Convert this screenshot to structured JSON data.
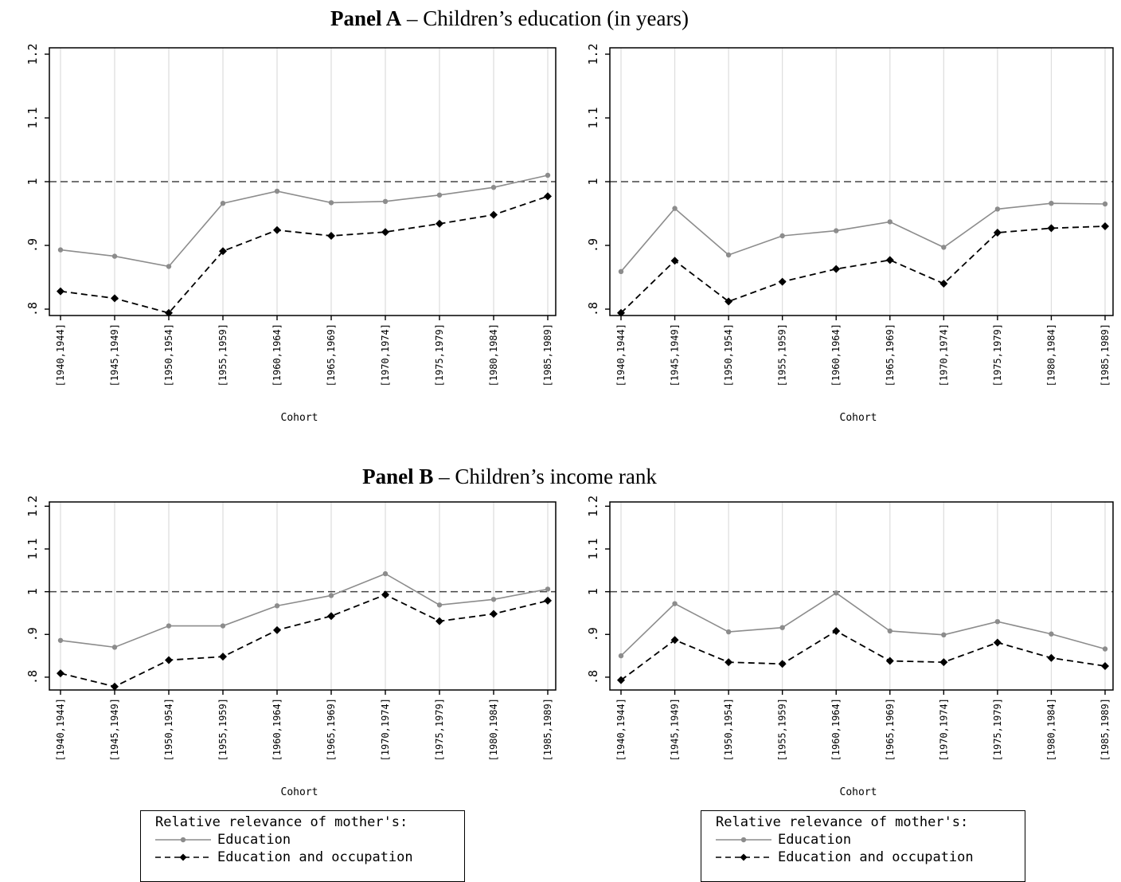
{
  "panels": {
    "a": {
      "bold": "Panel A",
      "rest": " – Children’s education (in years)"
    },
    "b": {
      "bold": "Panel B",
      "rest": " – Children’s income rank"
    }
  },
  "style": {
    "education_color": "#8c8c8c",
    "educ_occ_color": "#000000",
    "reference_color": "#444444",
    "grid_color": "#dddddd"
  },
  "legend": {
    "title": "Relative relevance of mother's:",
    "items": [
      "Education",
      "Education and occupation"
    ]
  },
  "chart_data": [
    {
      "type": "line",
      "panel": "Panel A",
      "xlabel": "Cohort",
      "categories": [
        "[1940,1944]",
        "[1945,1949]",
        "[1950,1954]",
        "[1955,1959]",
        "[1960,1964]",
        "[1965,1969]",
        "[1970,1974]",
        "[1975,1979]",
        "[1980,1984]",
        "[1985,1989]"
      ],
      "yticks": [
        ".8",
        ".9",
        "1",
        "1.1",
        "1.2"
      ],
      "ylim": [
        0.79,
        1.21
      ],
      "reference_line": 1,
      "grid": true,
      "series": [
        {
          "name": "Education",
          "values": [
            0.893,
            0.883,
            0.867,
            0.966,
            0.985,
            0.967,
            0.969,
            0.979,
            0.991,
            1.01
          ]
        },
        {
          "name": "Education and occupation",
          "values": [
            0.828,
            0.817,
            0.794,
            0.891,
            0.924,
            0.915,
            0.921,
            0.934,
            0.948,
            0.977
          ]
        }
      ]
    },
    {
      "type": "line",
      "panel": "Panel A",
      "xlabel": "Cohort",
      "categories": [
        "[1940,1944]",
        "[1945,1949]",
        "[1950,1954]",
        "[1955,1959]",
        "[1960,1964]",
        "[1965,1969]",
        "[1970,1974]",
        "[1975,1979]",
        "[1980,1984]",
        "[1985,1989]"
      ],
      "yticks": [
        ".8",
        ".9",
        "1",
        "1.1",
        "1.2"
      ],
      "ylim": [
        0.79,
        1.21
      ],
      "reference_line": 1,
      "grid": true,
      "series": [
        {
          "name": "Education",
          "values": [
            0.859,
            0.958,
            0.885,
            0.915,
            0.923,
            0.937,
            0.897,
            0.957,
            0.966,
            0.965
          ]
        },
        {
          "name": "Education and occupation",
          "values": [
            0.794,
            0.876,
            0.812,
            0.843,
            0.863,
            0.877,
            0.84,
            0.92,
            0.927,
            0.93
          ]
        }
      ]
    },
    {
      "type": "line",
      "panel": "Panel B",
      "xlabel": "Cohort",
      "categories": [
        "[1940,1944]",
        "[1945,1949]",
        "[1950,1954]",
        "[1955,1959]",
        "[1960,1964]",
        "[1965,1969]",
        "[1970,1974]",
        "[1975,1979]",
        "[1980,1984]",
        "[1985,1989]"
      ],
      "yticks": [
        ".8",
        ".9",
        "1",
        "1.1",
        "1.2"
      ],
      "ylim": [
        0.77,
        1.21
      ],
      "reference_line": 1,
      "grid": true,
      "series": [
        {
          "name": "Education",
          "values": [
            0.886,
            0.87,
            0.92,
            0.92,
            0.967,
            0.991,
            1.042,
            0.969,
            0.982,
            1.006
          ]
        },
        {
          "name": "Education and occupation",
          "values": [
            0.809,
            0.778,
            0.84,
            0.848,
            0.91,
            0.943,
            0.993,
            0.931,
            0.948,
            0.979
          ]
        }
      ]
    },
    {
      "type": "line",
      "panel": "Panel B",
      "xlabel": "Cohort",
      "categories": [
        "[1940,1944]",
        "[1945,1949]",
        "[1950,1954]",
        "[1955,1959]",
        "[1960,1964]",
        "[1965,1969]",
        "[1970,1974]",
        "[1975,1979]",
        "[1980,1984]",
        "[1985,1989]"
      ],
      "yticks": [
        ".8",
        ".9",
        "1",
        "1.1",
        "1.2"
      ],
      "ylim": [
        0.77,
        1.21
      ],
      "reference_line": 1,
      "grid": true,
      "series": [
        {
          "name": "Education",
          "values": [
            0.85,
            0.972,
            0.906,
            0.916,
            0.997,
            0.908,
            0.899,
            0.93,
            0.901,
            0.866
          ]
        },
        {
          "name": "Education and occupation",
          "values": [
            0.793,
            0.887,
            0.835,
            0.831,
            0.908,
            0.838,
            0.835,
            0.881,
            0.845,
            0.826
          ]
        }
      ]
    }
  ]
}
